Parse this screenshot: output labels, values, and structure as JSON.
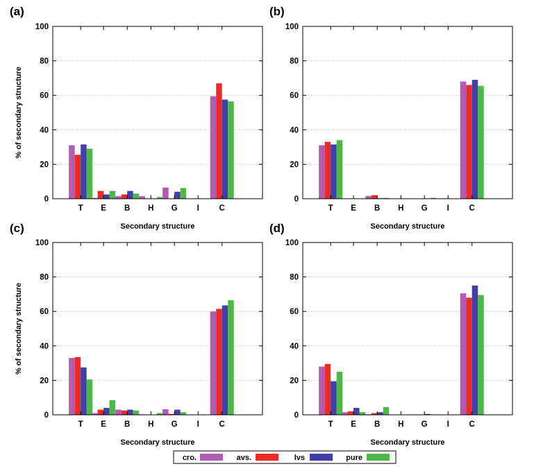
{
  "chart_data": [
    {
      "type": "bar",
      "panel_label": "(a)",
      "categories": [
        "T",
        "E",
        "B",
        "H",
        "G",
        "I",
        "C"
      ],
      "series": [
        {
          "name": "cro.",
          "values": [
            31,
            0.5,
            1.5,
            1.5,
            6.5,
            0,
            59.5
          ]
        },
        {
          "name": "avs.",
          "values": [
            25.5,
            4.5,
            2.5,
            0,
            0,
            0,
            67
          ]
        },
        {
          "name": "lvs",
          "values": [
            31.5,
            2.5,
            4.5,
            0,
            4,
            0,
            57.5
          ]
        },
        {
          "name": "pure",
          "values": [
            29,
            4.5,
            3,
            1,
            6.2,
            0,
            56.5
          ]
        }
      ],
      "xlabel": "Secondary structure",
      "ylabel": "% of secondary structure",
      "ylim": [
        0,
        100
      ],
      "yticks": [
        0,
        20,
        40,
        60,
        80,
        100
      ],
      "grid": true
    },
    {
      "type": "bar",
      "panel_label": "(b)",
      "categories": [
        "T",
        "E",
        "B",
        "H",
        "G",
        "I",
        "C"
      ],
      "series": [
        {
          "name": "cro.",
          "values": [
            31,
            0,
            1.5,
            0,
            0,
            0,
            68
          ]
        },
        {
          "name": "avs.",
          "values": [
            33,
            0,
            2,
            0,
            0,
            0,
            66
          ]
        },
        {
          "name": "lvs",
          "values": [
            31.5,
            0,
            0.3,
            0,
            0,
            0,
            69
          ]
        },
        {
          "name": "pure",
          "values": [
            34,
            0,
            0.5,
            0,
            0.5,
            0,
            65.5
          ]
        }
      ],
      "xlabel": "Secondary structure",
      "ylabel": "",
      "ylim": [
        0,
        100
      ],
      "yticks": [
        0,
        20,
        40,
        60,
        80,
        100
      ],
      "grid": true
    },
    {
      "type": "bar",
      "panel_label": "(c)",
      "categories": [
        "T",
        "E",
        "B",
        "H",
        "G",
        "I",
        "C"
      ],
      "series": [
        {
          "name": "cro.",
          "values": [
            33,
            1,
            3,
            0.3,
            3.2,
            0,
            60
          ]
        },
        {
          "name": "avs.",
          "values": [
            33.5,
            3,
            2.5,
            0,
            0.5,
            0,
            61.5
          ]
        },
        {
          "name": "lvs",
          "values": [
            27.5,
            4,
            3,
            0,
            3,
            0,
            63.5
          ]
        },
        {
          "name": "pure",
          "values": [
            20.5,
            8.5,
            2.5,
            1,
            1.5,
            0,
            66.5
          ]
        }
      ],
      "xlabel": "Secondary structure",
      "ylabel": "% of secondary structure",
      "ylim": [
        0,
        100
      ],
      "yticks": [
        0,
        20,
        40,
        60,
        80,
        100
      ],
      "grid": true
    },
    {
      "type": "bar",
      "panel_label": "(d)",
      "categories": [
        "T",
        "E",
        "B",
        "H",
        "G",
        "I",
        "C"
      ],
      "series": [
        {
          "name": "cro.",
          "values": [
            28,
            1.5,
            0.3,
            0,
            0,
            0,
            70.5
          ]
        },
        {
          "name": "avs.",
          "values": [
            29.5,
            2,
            1,
            0,
            0,
            0,
            68
          ]
        },
        {
          "name": "lvs",
          "values": [
            19.5,
            4,
            1.5,
            0,
            0.5,
            0,
            75
          ]
        },
        {
          "name": "pure",
          "values": [
            25,
            1.5,
            4.5,
            0,
            0,
            0,
            69.5
          ]
        }
      ],
      "xlabel": "Secondary structure",
      "ylabel": "",
      "ylim": [
        0,
        100
      ],
      "yticks": [
        0,
        20,
        40,
        60,
        80,
        100
      ],
      "grid": true
    }
  ],
  "legend": {
    "placement": "bottom-center",
    "entries": [
      {
        "label": "cro.",
        "color": "#b05cb0"
      },
      {
        "label": "avs.",
        "color": "#ee2a24"
      },
      {
        "label": "lvs",
        "color": "#4040a8"
      },
      {
        "label": "pure",
        "color": "#4cb848"
      }
    ]
  },
  "colors": {
    "cro.": "#b05cb0",
    "avs.": "#ee2a24",
    "lvs": "#4040a8",
    "pure": "#4cb848"
  }
}
